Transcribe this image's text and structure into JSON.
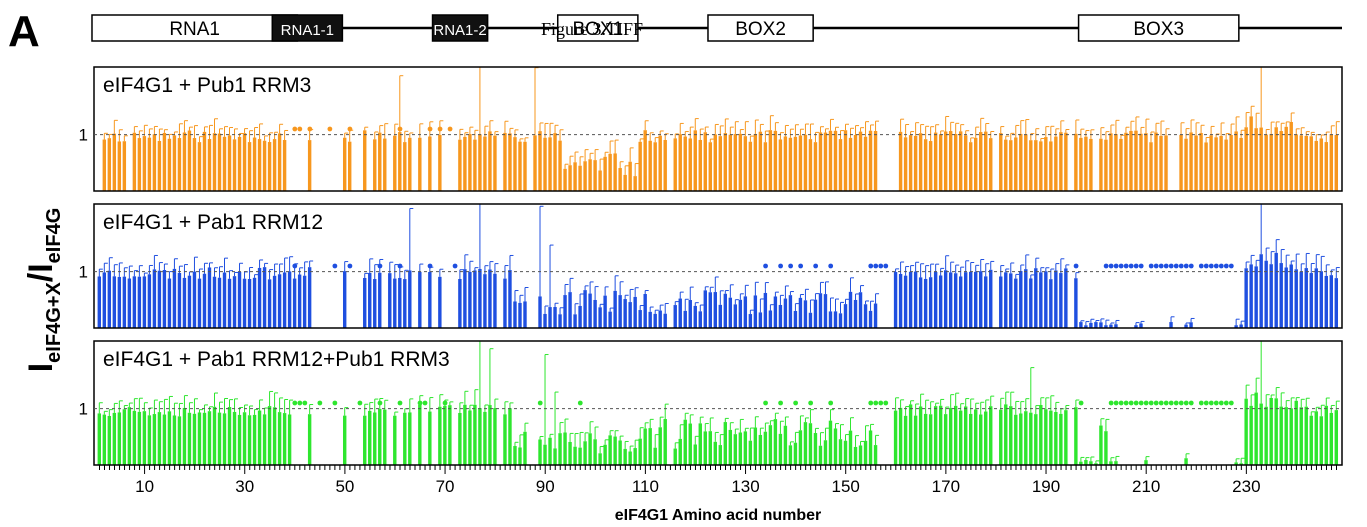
{
  "panel_letter": "A",
  "figure_caption": "Figure 3.TIFF",
  "domains": [
    {
      "label": "RNA1",
      "start": 0,
      "end": 41,
      "style": "open"
    },
    {
      "label": "RNA1-1",
      "start": 36,
      "end": 50,
      "style": "filled"
    },
    {
      "label": "RNA1-2",
      "start": 68,
      "end": 79,
      "style": "filled"
    },
    {
      "label": "BOX1",
      "start": 93,
      "end": 109,
      "style": "open"
    },
    {
      "label": "BOX2",
      "start": 123,
      "end": 144,
      "style": "open"
    },
    {
      "label": "BOX3",
      "start": 197,
      "end": 229,
      "style": "open"
    }
  ],
  "chart_data": {
    "type": "bar",
    "title": "",
    "xlabel": "eIF4G1 Amino acid number",
    "ylabel_main": "I",
    "ylabel_sub1": "eIF4G+X",
    "ylabel_slash": "/I",
    "ylabel_sub2": "eIF4G",
    "xlim": [
      1,
      248
    ],
    "xticks": [
      10,
      30,
      50,
      70,
      90,
      110,
      130,
      150,
      170,
      190,
      210,
      230
    ],
    "ylim": [
      0,
      2.2
    ],
    "reference_value": 1,
    "reference_label": "1",
    "panels": [
      {
        "name": "eIF4G1 + Pub1 RRM3",
        "color": "#f7971e",
        "seed": 11,
        "missing": [
          1,
          7,
          39,
          40,
          41,
          42,
          44,
          45,
          46,
          47,
          48,
          49,
          52,
          53,
          55,
          59,
          64,
          66,
          68,
          70,
          71,
          72,
          81,
          87,
          115,
          157,
          158,
          159,
          160,
          180,
          195,
          200,
          215,
          216
        ],
        "dots": [
          40,
          41,
          43,
          47,
          51,
          61,
          67,
          69,
          71
        ],
        "dips": [
          [
            94,
            108,
            0.45
          ]
        ],
        "spikes": [
          [
            53,
            0.6
          ],
          [
            61,
            1.0
          ],
          [
            77,
            1.5
          ],
          [
            87,
            1.3
          ],
          [
            88,
            1.2
          ],
          [
            233,
            1.2
          ]
        ]
      },
      {
        "name": "eIF4G1 + Pab1 RRM12",
        "color": "#1f4fe0",
        "seed": 23,
        "missing": [
          44,
          45,
          46,
          47,
          48,
          49,
          51,
          52,
          53,
          58,
          64,
          66,
          68,
          70,
          71,
          72,
          81,
          87,
          88,
          115,
          157,
          158,
          159,
          180,
          195,
          205,
          206,
          207,
          208,
          210,
          211,
          212,
          213,
          214,
          216,
          217,
          220,
          221,
          222,
          223,
          224,
          225,
          226,
          227
        ],
        "dots": [
          40,
          48,
          51,
          57,
          61,
          67,
          72,
          134,
          137,
          139,
          141,
          144,
          147,
          155,
          156,
          157,
          158,
          196,
          202,
          203,
          204,
          205,
          206,
          207,
          208,
          209,
          211,
          212,
          213,
          214,
          215,
          216,
          217,
          218,
          219,
          221,
          222,
          223,
          224,
          225,
          226,
          227
        ],
        "dips": [
          [
            84,
            159,
            0.45
          ],
          [
            197,
            229,
            0.08
          ]
        ],
        "spikes": [
          [
            63,
            1.1
          ],
          [
            71,
            1.2
          ],
          [
            77,
            1.4
          ],
          [
            89,
            1.6
          ],
          [
            91,
            1.1
          ],
          [
            233,
            1.2
          ]
        ],
        "low_bars": [
          [
            201,
            0.1
          ],
          [
            202,
            0.05
          ],
          [
            203,
            0.06
          ],
          [
            208,
            0.05
          ],
          [
            218,
            0.06
          ]
        ]
      },
      {
        "name": "eIF4G1 + Pab1 RRM12+Pub1 RRM3",
        "color": "#2ee62e",
        "seed": 37,
        "missing": [
          40,
          41,
          42,
          44,
          45,
          46,
          47,
          48,
          49,
          51,
          52,
          53,
          59,
          61,
          64,
          66,
          68,
          72,
          81,
          87,
          88,
          115,
          157,
          158,
          159,
          180,
          195,
          205,
          206,
          207,
          208,
          209,
          211,
          212,
          213,
          214,
          215,
          216,
          217,
          219,
          220,
          221,
          222,
          223,
          224,
          225,
          226,
          227
        ],
        "dots": [
          40,
          41,
          42,
          45,
          48,
          53,
          57,
          61,
          65,
          66,
          70,
          89,
          97,
          134,
          137,
          140,
          143,
          147,
          155,
          156,
          157,
          158,
          197,
          203,
          204,
          205,
          206,
          207,
          208,
          209,
          210,
          211,
          212,
          213,
          214,
          215,
          216,
          217,
          218,
          219,
          221,
          222,
          223,
          224,
          225,
          226,
          227
        ],
        "dips": [
          [
            84,
            109,
            0.4
          ],
          [
            110,
            159,
            0.55
          ],
          [
            197,
            229,
            0.06
          ]
        ],
        "spikes": [
          [
            64,
            0.9
          ],
          [
            77,
            1.3
          ],
          [
            79,
            1.0
          ],
          [
            90,
            1.6
          ],
          [
            92,
            1.0
          ],
          [
            187,
            0.8
          ],
          [
            233,
            1.3
          ]
        ],
        "low_bars": [
          [
            201,
            0.7
          ],
          [
            202,
            0.6
          ],
          [
            218,
            0.12
          ]
        ]
      }
    ]
  }
}
